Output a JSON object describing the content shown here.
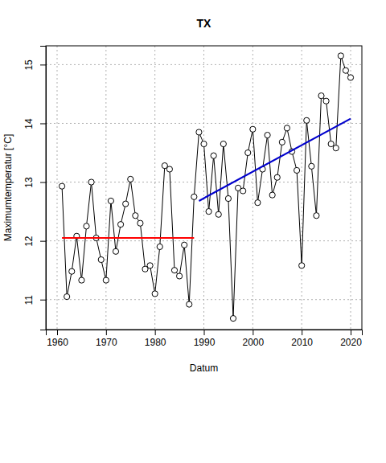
{
  "chart_data": {
    "type": "line",
    "title": "TX",
    "x_label": "Datum",
    "y_label": "Maximumtemperatur [°C]",
    "x": [
      1961,
      1962,
      1963,
      1964,
      1965,
      1966,
      1967,
      1968,
      1969,
      1970,
      1971,
      1972,
      1973,
      1974,
      1975,
      1976,
      1977,
      1978,
      1979,
      1980,
      1981,
      1982,
      1983,
      1984,
      1985,
      1986,
      1987,
      1988,
      1989,
      1990,
      1991,
      1992,
      1993,
      1994,
      1995,
      1996,
      1997,
      1998,
      1999,
      2000,
      2001,
      2002,
      2003,
      2004,
      2005,
      2006,
      2007,
      2008,
      2009,
      2010,
      2011,
      2012,
      2013,
      2014,
      2015,
      2016,
      2017,
      2018,
      2019,
      2020
    ],
    "series": [
      {
        "type": "line",
        "color": "#000000",
        "marker": "circle",
        "line_style": "solid",
        "values": [
          12.93,
          11.05,
          11.48,
          12.08,
          11.33,
          12.25,
          13.0,
          12.05,
          11.68,
          11.33,
          12.68,
          11.82,
          12.28,
          12.63,
          13.05,
          12.43,
          12.3,
          11.52,
          11.58,
          11.1,
          11.9,
          13.28,
          13.22,
          11.5,
          11.4,
          11.93,
          10.92,
          12.75,
          13.85,
          13.65,
          12.5,
          13.45,
          12.45,
          13.65,
          12.72,
          10.68,
          12.9,
          12.85,
          13.5,
          13.9,
          12.65,
          13.22,
          13.8,
          12.78,
          13.08,
          13.68,
          13.92,
          13.52,
          13.2,
          11.58,
          14.05,
          13.27,
          12.43,
          14.47,
          14.38,
          13.65,
          13.58,
          15.15,
          14.9,
          14.78
        ]
      },
      {
        "type": "line",
        "color": "#ff0000",
        "line_style": "solid",
        "x": [
          1961,
          1988
        ],
        "values": [
          12.05,
          12.05
        ]
      },
      {
        "type": "line",
        "color": "#0000cd",
        "line_style": "solid",
        "x": [
          1989,
          2020
        ],
        "values": [
          12.68,
          14.08
        ]
      }
    ],
    "xlim": [
      1957.7,
      2022.3
    ],
    "ylim": [
      10.49,
      15.32
    ],
    "xticks": [
      1960,
      1970,
      1980,
      1990,
      2000,
      2010,
      2020
    ],
    "yticks": [
      11,
      12,
      13,
      14,
      15
    ],
    "grid": true
  }
}
